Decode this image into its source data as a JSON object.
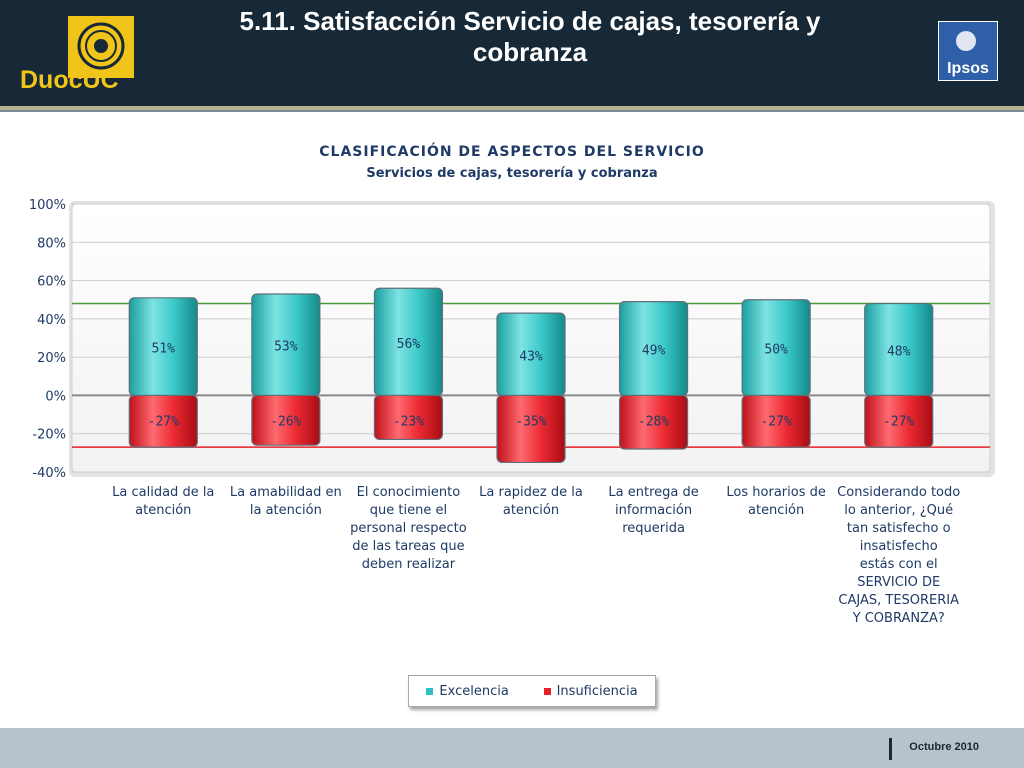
{
  "slide": {
    "title": "5.11. Satisfacción Servicio de cajas, tesorería y cobranza",
    "brand_left": "DuocUC",
    "brand_right": "Ipsos",
    "footer_date": "Octubre 2010"
  },
  "chart_data": {
    "type": "bar",
    "title": "CLASIFICACIÓN DE ASPECTOS DEL SERVICIO",
    "subtitle": "Servicios de cajas, tesorería y cobranza",
    "categories": [
      "La calidad de la atención",
      "La amabilidad en la atención",
      "El conocimiento que tiene el personal respecto de las tareas que deben realizar",
      "La rapidez de la atención",
      "La entrega de información requerida",
      "Los horarios de atención",
      "Considerando todo lo anterior, ¿Qué tan satisfecho o insatisfecho estás con el SERVICIO DE CAJAS, TESORERIA Y COBRANZA?"
    ],
    "series": [
      {
        "name": "Excelencia",
        "values": [
          51,
          53,
          56,
          43,
          49,
          50,
          48
        ],
        "labels": [
          "51%",
          "53%",
          "56%",
          "43%",
          "49%",
          "50%",
          "48%"
        ],
        "color": "#2fbfbf"
      },
      {
        "name": "Insuficiencia",
        "values": [
          -27,
          -26,
          -23,
          -35,
          -28,
          -27,
          -27
        ],
        "labels": [
          "-27%",
          "-26%",
          "-23%",
          "-35%",
          "-28%",
          "-27%",
          "-27%"
        ],
        "color": "#e8202a"
      }
    ],
    "ylim": [
      -40,
      100
    ],
    "yticks": [
      100,
      80,
      60,
      40,
      20,
      0,
      -20,
      -40
    ],
    "ytick_labels": [
      "100%",
      "80%",
      "60%",
      "40%",
      "20%",
      "0%",
      "-20%",
      "-40%"
    ],
    "reference_lines": [
      {
        "value": 48,
        "color": "#4a9a3a"
      },
      {
        "value": -27,
        "color": "#e8202a"
      }
    ],
    "grid": true,
    "legend_position": "bottom"
  }
}
